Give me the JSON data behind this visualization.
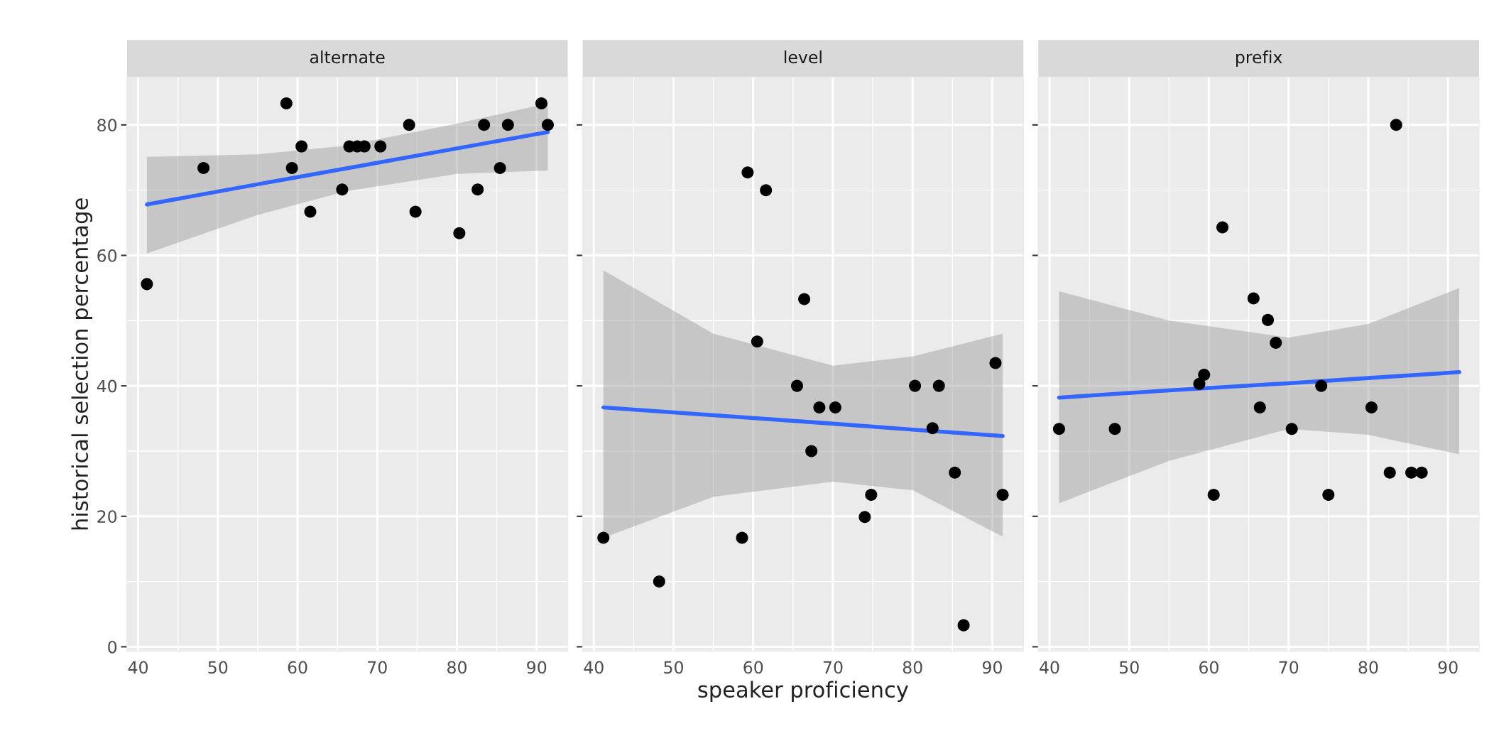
{
  "chart_data": [
    {
      "type": "scatter",
      "title": "alternate",
      "ylabel": "historical selection percentage",
      "xlim": [
        38.6,
        93.9
      ],
      "ylim": [
        -0.7,
        87.3
      ],
      "xticks": [
        40,
        50,
        60,
        70,
        80,
        90
      ],
      "yticks": [
        0,
        20,
        40,
        60,
        80
      ],
      "grid": true,
      "series": [
        {
          "color": "#000000",
          "marker": "circle",
          "x": [
            58.6,
            60.5,
            48.2,
            59.3,
            41.1,
            61.6,
            65.6,
            66.5,
            67.5,
            68.4,
            70.4,
            74.0,
            74.8,
            80.3,
            82.6,
            83.4,
            85.4,
            86.4,
            90.6,
            91.4
          ],
          "values": [
            83.3,
            76.7,
            73.4,
            73.4,
            55.6,
            66.7,
            70.1,
            76.7,
            76.7,
            76.7,
            76.7,
            80.0,
            66.7,
            63.4,
            70.1,
            80.0,
            73.4,
            80.0,
            83.3,
            80.0
          ]
        },
        {
          "type": "line",
          "color": "#3366ff",
          "x": [
            41.1,
            55,
            66,
            80,
            91.4
          ],
          "values": [
            67.8,
            70.9,
            73.3,
            76.4,
            78.9
          ],
          "lower": [
            60.3,
            66.2,
            69.8,
            72.5,
            73.0
          ],
          "upper": [
            75.1,
            75.5,
            76.8,
            80.2,
            83.3
          ]
        }
      ]
    },
    {
      "type": "scatter",
      "title": "level",
      "xlabel": "speaker proficiency",
      "xlim": [
        38.6,
        93.9
      ],
      "ylim": [
        -0.7,
        87.3
      ],
      "xticks": [
        40,
        50,
        60,
        70,
        80,
        90
      ],
      "yticks": [
        0,
        20,
        40,
        60,
        80
      ],
      "grid": true,
      "tick_labels": "x",
      "series": [
        {
          "color": "#000000",
          "marker": "circle",
          "x": [
            59.3,
            61.6,
            66.4,
            60.5,
            90.4,
            65.5,
            80.3,
            83.3,
            68.3,
            70.3,
            82.5,
            67.3,
            85.3,
            74.8,
            91.3,
            74.0,
            41.2,
            58.6,
            48.2,
            86.4
          ],
          "values": [
            72.7,
            70.0,
            53.3,
            46.8,
            43.5,
            40.0,
            40.0,
            40.0,
            36.7,
            36.7,
            33.5,
            30.0,
            26.7,
            23.3,
            23.3,
            19.9,
            16.7,
            16.7,
            10.0,
            3.3
          ]
        },
        {
          "type": "line",
          "color": "#3366ff",
          "x": [
            41.2,
            55,
            70,
            80,
            91.3
          ],
          "values": [
            36.7,
            35.5,
            34.2,
            33.3,
            32.3
          ],
          "lower": [
            16.7,
            23.0,
            25.3,
            24.0,
            16.9
          ],
          "upper": [
            57.7,
            48.0,
            43.1,
            44.5,
            48.0
          ]
        }
      ]
    },
    {
      "type": "scatter",
      "title": "prefix",
      "xlim": [
        38.6,
        93.9
      ],
      "ylim": [
        -0.7,
        87.3
      ],
      "xticks": [
        40,
        50,
        60,
        70,
        80,
        90
      ],
      "yticks": [
        0,
        20,
        40,
        60,
        80
      ],
      "grid": true,
      "tick_labels": "x",
      "series": [
        {
          "color": "#000000",
          "marker": "circle",
          "x": [
            83.5,
            61.7,
            65.6,
            67.4,
            68.4,
            59.4,
            58.8,
            74.1,
            66.4,
            80.4,
            41.2,
            48.2,
            70.4,
            82.7,
            85.4,
            86.7,
            60.6,
            75.0
          ],
          "values": [
            80.0,
            64.3,
            53.4,
            50.1,
            46.6,
            41.7,
            40.3,
            40.0,
            36.7,
            36.7,
            33.4,
            33.4,
            33.4,
            26.7,
            26.7,
            26.7,
            23.3,
            23.3
          ]
        },
        {
          "type": "line",
          "color": "#3366ff",
          "x": [
            41.2,
            55,
            70,
            80,
            91.4
          ],
          "values": [
            38.2,
            39.3,
            40.4,
            41.2,
            42.1
          ],
          "lower": [
            22.0,
            28.5,
            33.4,
            32.5,
            29.5
          ],
          "upper": [
            54.5,
            50.0,
            47.4,
            49.5,
            55.0
          ]
        }
      ]
    }
  ]
}
